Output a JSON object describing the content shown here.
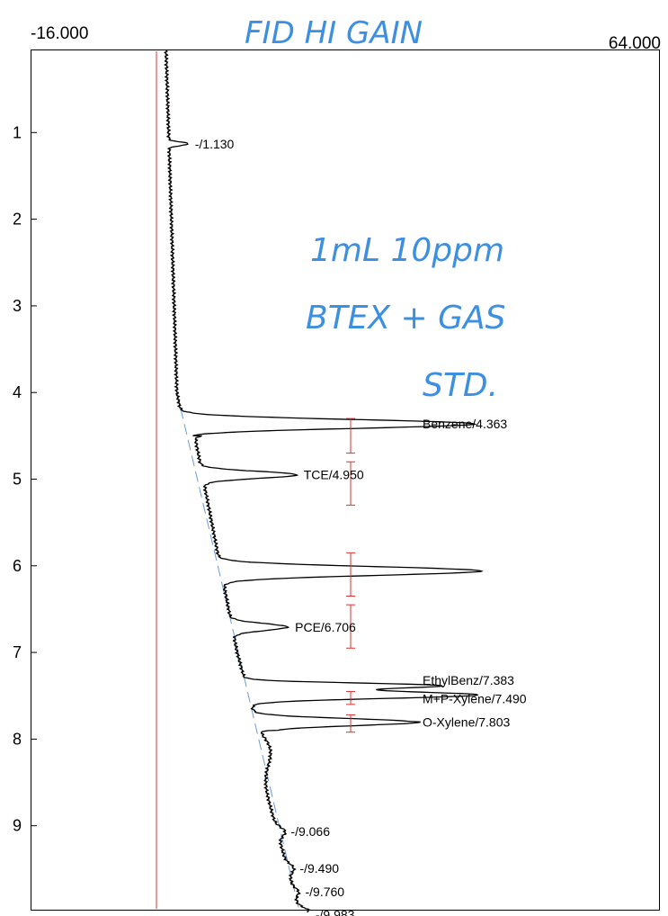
{
  "chart_data": {
    "type": "line",
    "title": "",
    "xlabel": "",
    "ylabel": "",
    "x_axis_labels": {
      "min": "-16.000",
      "max": "64.000"
    },
    "xlim": [
      -16,
      64
    ],
    "ylim": [
      0,
      10
    ],
    "y_ticks": [
      "1",
      "2",
      "3",
      "4",
      "5",
      "6",
      "7",
      "8",
      "9"
    ],
    "orientation": "vertical-time",
    "peaks": [
      {
        "time": 1.13,
        "label": "-/1.130",
        "height": 2.5
      },
      {
        "time": 4.363,
        "label": "Benzene/4.363",
        "height": 37
      },
      {
        "time": 4.95,
        "label": "TCE/4.950",
        "height": 12
      },
      {
        "time": 6.06,
        "label": "",
        "height": 33
      },
      {
        "time": 6.706,
        "label": "PCE/6.706",
        "height": 7
      },
      {
        "time": 7.383,
        "label": "EthylBenz/7.383",
        "height": 24
      },
      {
        "time": 7.49,
        "label": "M+P-Xylene/7.490",
        "height": 29
      },
      {
        "time": 7.803,
        "label": "O-Xylene/7.803",
        "height": 20
      },
      {
        "time": 9.066,
        "label": "-/9.066",
        "height": 1
      },
      {
        "time": 9.49,
        "label": "-/9.490",
        "height": 0.8
      },
      {
        "time": 9.76,
        "label": "-/9.760",
        "height": 0.6
      },
      {
        "time": 9.983,
        "label": "-/9.983",
        "height": 1.2
      }
    ],
    "handwriting": {
      "header": "FID HI GAIN",
      "line1": "1mL 10ppm",
      "line2": "BTEX + GAS",
      "line3": "STD."
    },
    "colors": {
      "trace": "#000000",
      "zero_line": "#e03030",
      "baseline": "#6a9bd8",
      "handwriting": "#3d8fe0",
      "window_marks": "#e03030"
    }
  }
}
